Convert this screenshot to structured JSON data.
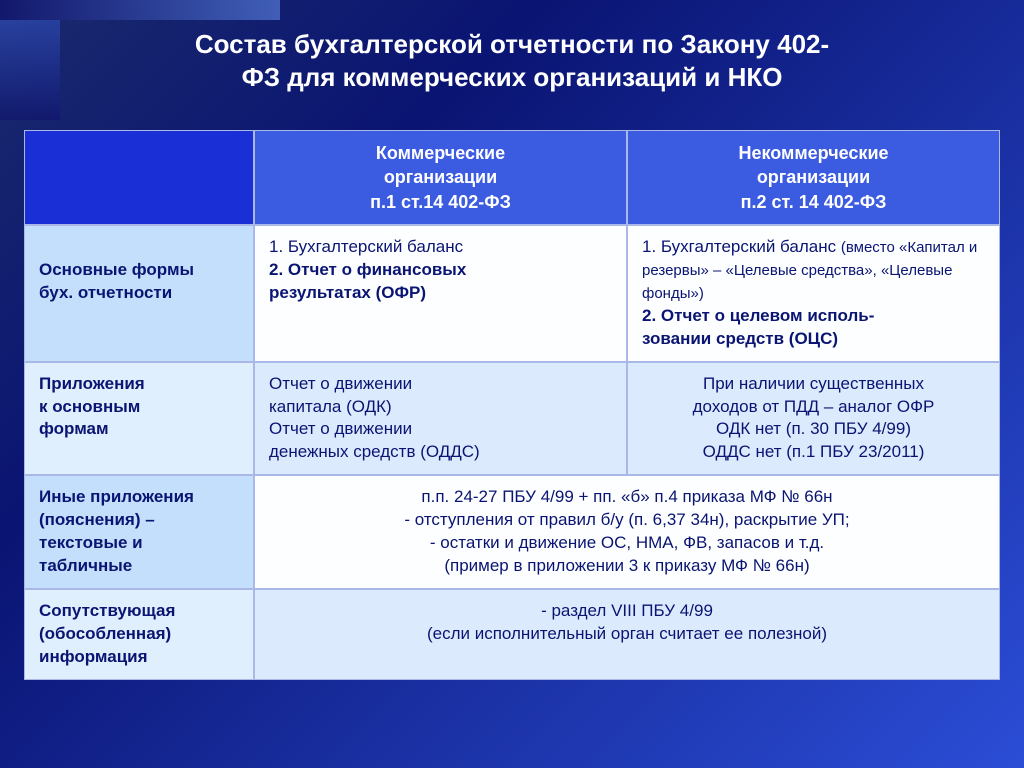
{
  "colors": {
    "bg_start": "#1a2a6c",
    "bg_mid": "#0a1472",
    "bg_end": "#2b4dd6",
    "header_cell": "#3b5be0",
    "header_empty": "#1b2fd7",
    "row_label_a": "#c3dffb",
    "row_label_b": "#e0effd",
    "cell_a": "#fdfeff",
    "cell_b": "#dceafd",
    "border": "#aab8e8",
    "text": "#0a1472",
    "title_color": "#ffffff"
  },
  "typography": {
    "family": "Arial",
    "title_size": 26,
    "header_size": 18,
    "body_size": 17,
    "small_size": 15
  },
  "title_line1": "Состав бухгалтерской отчетности по Закону 402-",
  "title_line2": "ФЗ для коммерческих организаций и НКО",
  "header": {
    "col1_l1": "Коммерческие",
    "col1_l2": "организации",
    "col1_l3": "п.1 ст.14 402-ФЗ",
    "col2_l1": "Некоммерческие",
    "col2_l2": "организации",
    "col2_l3": "п.2 ст. 14 402-ФЗ"
  },
  "row1": {
    "label_l1": "Основные формы",
    "label_l2": "бух. отчетности",
    "c1_l1": "1. Бухгалтерский баланс",
    "c1_l2": "2. Отчет о финансовых",
    "c1_l3": "результатах (ОФР)",
    "c2_l1a": "1. Бухгалтерский баланс ",
    "c2_l1b": "(вместо «Капитал и резервы» – «Целевые средства», «Целевые фонды»)",
    "c2_l2": "2. Отчет о целевом исполь-",
    "c2_l3": "зовании средств (ОЦС)"
  },
  "row2": {
    "label_l1": "Приложения",
    "label_l2": "к основным",
    "label_l3": "формам",
    "c1_l1": "Отчет о движении",
    "c1_l2": "капитала (ОДК)",
    "c1_l3": "Отчет о движении",
    "c1_l4": "денежных средств (ОДДС)",
    "c2_l1": "При наличии существенных",
    "c2_l2": "доходов от ПДД – аналог ОФР",
    "c2_l3": "ОДК нет (п. 30 ПБУ 4/99)",
    "c2_l4": "ОДДС нет (п.1 ПБУ 23/2011)"
  },
  "row3": {
    "label_l1": "Иные приложения",
    "label_l2": "(пояснения) –",
    "label_l3": "текстовые и",
    "label_l4": "табличные",
    "m_l1": "п.п. 24-27 ПБУ 4/99 + пп. «б» п.4 приказа МФ № 66н",
    "m_l2": "-    отступления от правил б/у (п. 6,37 34н), раскрытие УП;",
    "m_l3": "-    остатки и движение ОС, НМА, ФВ, запасов и т.д.",
    "m_l4": "(пример в приложении 3 к приказу МФ № 66н)"
  },
  "row4": {
    "label_l1": "Сопутствующая",
    "label_l2": "(обособленная)",
    "label_l3": "информация",
    "m_l1": "-    раздел VIII ПБУ 4/99",
    "m_l2": "(если исполнительный орган считает ее полезной)"
  }
}
